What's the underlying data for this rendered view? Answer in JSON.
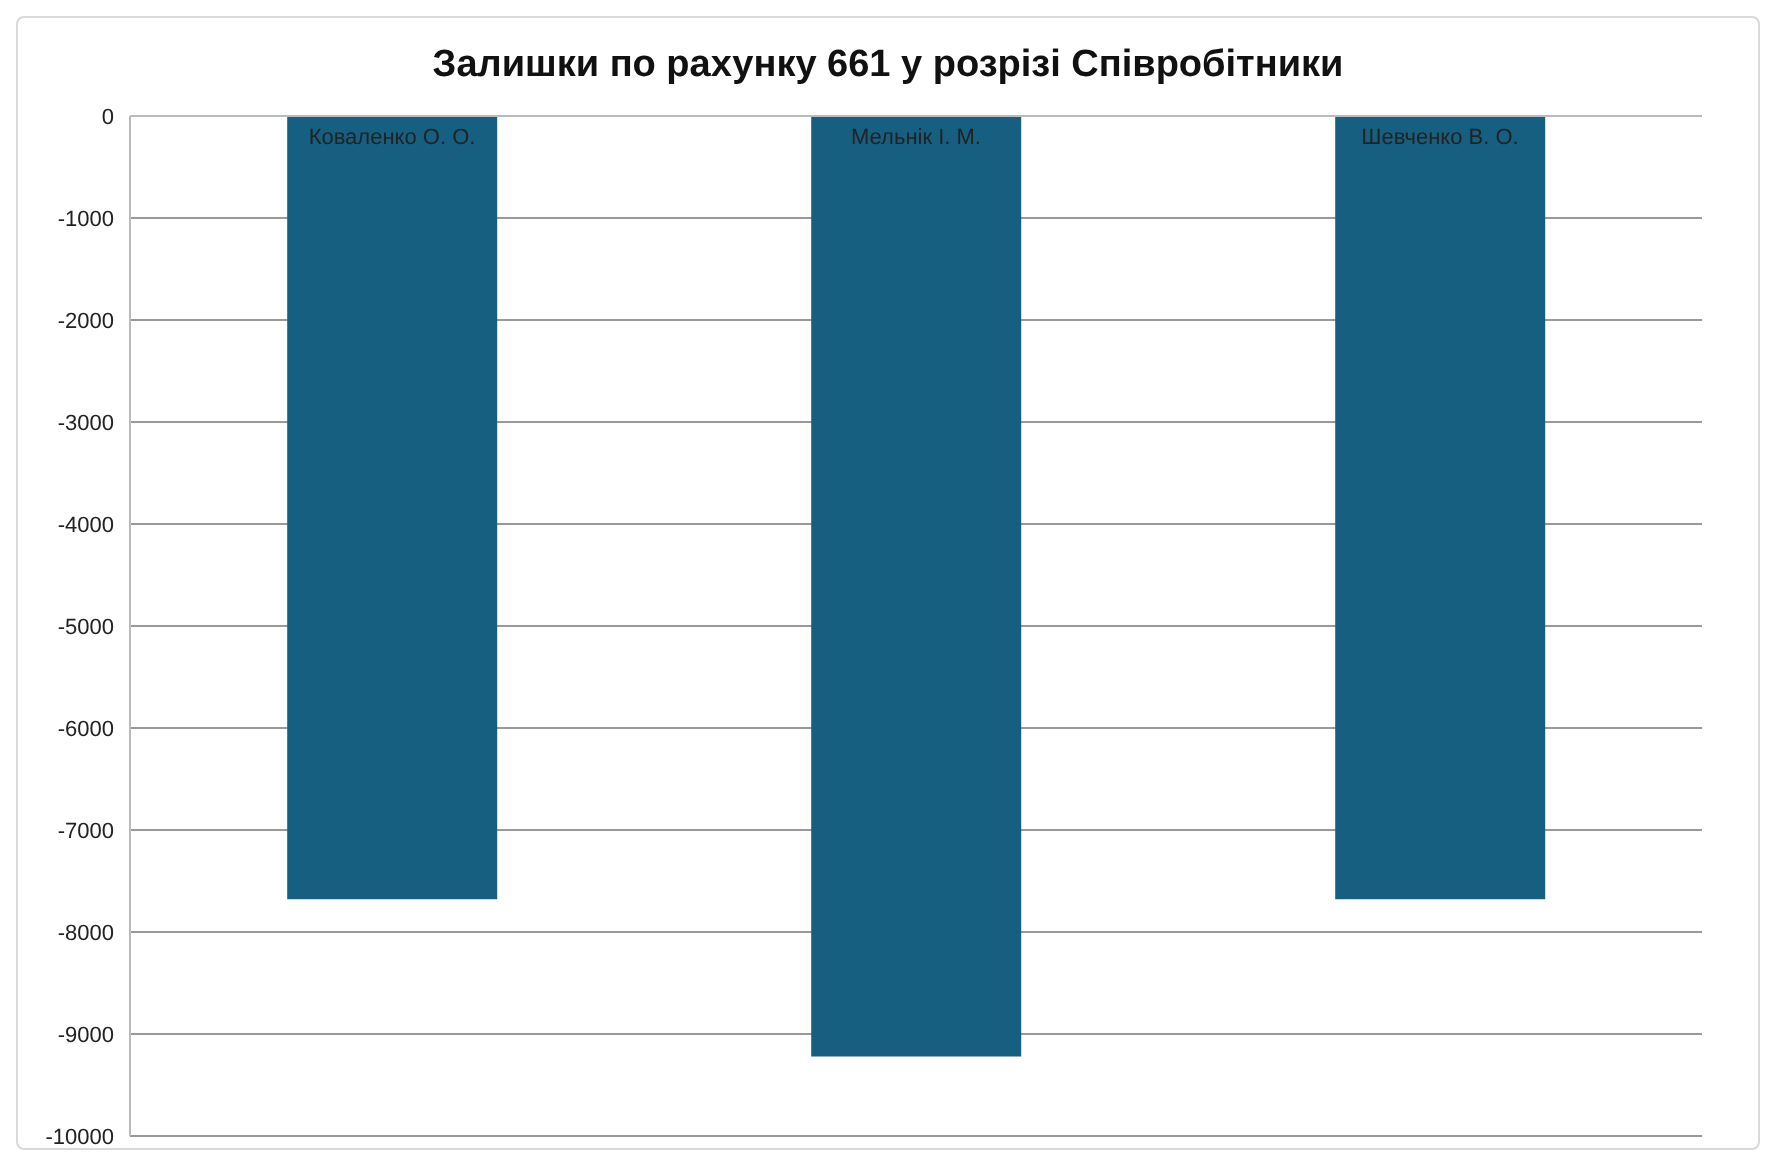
{
  "chart_data": {
    "type": "bar",
    "title": "Залишки по рахунку 661 у розрізі Співробітники",
    "categories": [
      "Коваленко О. О.",
      "Мельнік І. М.",
      "Шевченко В. О."
    ],
    "values": [
      -7680,
      -9220,
      -7680
    ],
    "color": "#175f80",
    "ylim": [
      -10000,
      0
    ],
    "yticks": [
      0,
      -1000,
      -2000,
      -3000,
      -4000,
      -5000,
      -6000,
      -7000,
      -8000,
      -9000,
      -10000
    ],
    "grid": "y",
    "legend": false
  }
}
